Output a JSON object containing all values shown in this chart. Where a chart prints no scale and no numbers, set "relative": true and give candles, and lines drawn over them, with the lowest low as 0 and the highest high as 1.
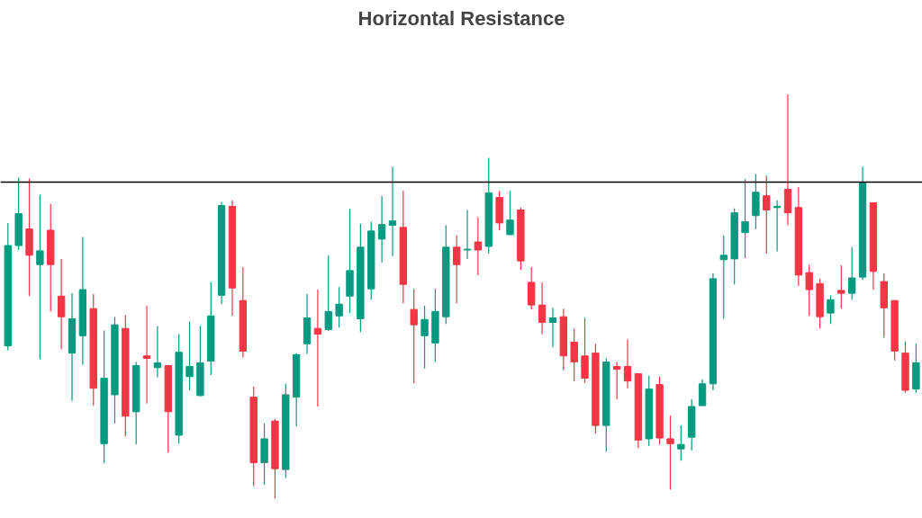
{
  "chart_data": {
    "type": "candlestick",
    "title": "Horizontal Resistance",
    "relative": true,
    "categories": [
      null,
      null,
      null,
      null,
      null,
      null,
      null,
      null,
      null,
      null,
      null,
      null,
      null,
      null,
      null,
      null,
      null,
      null,
      null,
      null,
      null,
      null,
      null,
      null,
      null,
      null,
      null,
      null,
      null,
      null,
      null,
      null,
      null,
      null,
      null,
      null,
      null,
      null,
      null,
      null,
      null,
      null,
      null,
      null,
      null,
      null,
      null,
      null,
      null,
      null,
      null,
      null,
      null,
      null,
      null,
      null,
      null,
      null,
      null,
      null,
      null,
      null,
      null,
      null,
      null,
      null,
      null,
      null,
      null,
      null,
      null,
      null,
      null,
      null,
      null,
      null,
      null,
      null,
      null,
      null,
      null,
      null,
      null,
      null,
      null,
      null
    ],
    "ohlc": [
      [
        0.378,
        0.682,
        0.367,
        0.626
      ],
      [
        0.626,
        0.794,
        0.615,
        0.705
      ],
      [
        0.667,
        0.792,
        0.501,
        0.602
      ],
      [
        0.579,
        0.752,
        0.345,
        0.613
      ],
      [
        0.664,
        0.729,
        0.463,
        0.579
      ],
      [
        0.501,
        0.593,
        0.369,
        0.45
      ],
      [
        0.36,
        0.508,
        0.242,
        0.445
      ],
      [
        0.403,
        0.647,
        0.331,
        0.517
      ],
      [
        0.47,
        0.506,
        0.23,
        0.273
      ],
      [
        0.136,
        0.416,
        0.087,
        0.298
      ],
      [
        0.257,
        0.45,
        0.186,
        0.43
      ],
      [
        0.421,
        0.454,
        0.154,
        0.204
      ],
      [
        0.215,
        0.338,
        0.134,
        0.329
      ],
      [
        0.353,
        0.477,
        0.235,
        0.347
      ],
      [
        0.324,
        0.427,
        0.3,
        0.336
      ],
      [
        0.329,
        0.329,
        0.114,
        0.215
      ],
      [
        0.157,
        0.407,
        0.136,
        0.362
      ],
      [
        0.302,
        0.438,
        0.268,
        0.327
      ],
      [
        0.255,
        0.427,
        0.253,
        0.336
      ],
      [
        0.34,
        0.535,
        0.306,
        0.452
      ],
      [
        0.503,
        0.734,
        0.481,
        0.725
      ],
      [
        0.723,
        0.738,
        0.452,
        0.521
      ],
      [
        0.49,
        0.573,
        0.349,
        0.365
      ],
      [
        0.251,
        0.277,
        0.031,
        0.089
      ],
      [
        0.089,
        0.186,
        0.034,
        0.148
      ],
      [
        0.192,
        0.197,
        0.0,
        0.074
      ],
      [
        0.072,
        0.284,
        0.051,
        0.257
      ],
      [
        0.251,
        0.36,
        0.179,
        0.356
      ],
      [
        0.383,
        0.506,
        0.358,
        0.447
      ],
      [
        0.421,
        0.517,
        0.228,
        0.407
      ],
      [
        0.418,
        0.602,
        0.414,
        0.463
      ],
      [
        0.452,
        0.523,
        0.423,
        0.481
      ],
      [
        0.501,
        0.716,
        0.459,
        0.564
      ],
      [
        0.445,
        0.68,
        0.412,
        0.622
      ],
      [
        0.519,
        0.685,
        0.492,
        0.662
      ],
      [
        0.642,
        0.749,
        0.584,
        0.678
      ],
      [
        0.676,
        0.821,
        0.6,
        0.687
      ],
      [
        0.671,
        0.761,
        0.483,
        0.53
      ],
      [
        0.468,
        0.519,
        0.286,
        0.43
      ],
      [
        0.403,
        0.477,
        0.322,
        0.443
      ],
      [
        0.385,
        0.519,
        0.338,
        0.463
      ],
      [
        0.45,
        0.676,
        0.432,
        0.622
      ],
      [
        0.622,
        0.651,
        0.483,
        0.579
      ],
      [
        0.615,
        0.714,
        0.593,
        0.617
      ],
      [
        0.635,
        0.696,
        0.553,
        0.615
      ],
      [
        0.624,
        0.843,
        0.606,
        0.756
      ],
      [
        0.745,
        0.761,
        0.664,
        0.682
      ],
      [
        0.653,
        0.761,
        0.653,
        0.689
      ],
      [
        0.714,
        0.72,
        0.566,
        0.588
      ],
      [
        0.535,
        0.573,
        0.468,
        0.479
      ],
      [
        0.479,
        0.535,
        0.407,
        0.436
      ],
      [
        0.436,
        0.472,
        0.374,
        0.447
      ],
      [
        0.45,
        0.47,
        0.318,
        0.353
      ],
      [
        0.387,
        0.421,
        0.291,
        0.338
      ],
      [
        0.353,
        0.447,
        0.286,
        0.298
      ],
      [
        0.36,
        0.383,
        0.161,
        0.181
      ],
      [
        0.181,
        0.347,
        0.116,
        0.338
      ],
      [
        0.327,
        0.338,
        0.246,
        0.32
      ],
      [
        0.327,
        0.394,
        0.273,
        0.291
      ],
      [
        0.309,
        0.309,
        0.125,
        0.145
      ],
      [
        0.148,
        0.304,
        0.13,
        0.271
      ],
      [
        0.282,
        0.302,
        0.134,
        0.15
      ],
      [
        0.148,
        0.206,
        0.022,
        0.136
      ],
      [
        0.123,
        0.181,
        0.094,
        0.134
      ],
      [
        0.152,
        0.246,
        0.119,
        0.228
      ],
      [
        0.23,
        0.295,
        0.23,
        0.284
      ],
      [
        0.284,
        0.557,
        0.268,
        0.544
      ],
      [
        0.591,
        0.651,
        0.445,
        0.602
      ],
      [
        0.593,
        0.718,
        0.53,
        0.707
      ],
      [
        0.658,
        0.79,
        0.595,
        0.685
      ],
      [
        0.7,
        0.803,
        0.667,
        0.758
      ],
      [
        0.749,
        0.799,
        0.606,
        0.714
      ],
      [
        0.72,
        0.738,
        0.611,
        0.723
      ],
      [
        0.765,
        1.0,
        0.676,
        0.707
      ],
      [
        0.72,
        0.77,
        0.526,
        0.553
      ],
      [
        0.559,
        0.579,
        0.452,
        0.517
      ],
      [
        0.532,
        0.544,
        0.421,
        0.45
      ],
      [
        0.459,
        0.503,
        0.432,
        0.492
      ],
      [
        0.515,
        0.577,
        0.47,
        0.508
      ],
      [
        0.508,
        0.622,
        0.492,
        0.546
      ],
      [
        0.548,
        0.821,
        0.541,
        0.781
      ],
      [
        0.732,
        0.732,
        0.517,
        0.562
      ],
      [
        0.537,
        0.557,
        0.398,
        0.472
      ],
      [
        0.49,
        0.49,
        0.342,
        0.365
      ],
      [
        0.36,
        0.389,
        0.262,
        0.268
      ],
      [
        0.271,
        0.383,
        0.262,
        0.336
      ]
    ],
    "colors": [
      "#089981",
      "#089981",
      "#f23645",
      "#089981",
      "#f23645",
      "#f23645",
      "#089981",
      "#089981",
      "#f23645",
      "#089981",
      "#089981",
      "#f23645",
      "#089981",
      "#f23645",
      "#089981",
      "#f23645",
      "#089981",
      "#089981",
      "#089981",
      "#089981",
      "#089981",
      "#f23645",
      "#f23645",
      "#f23645",
      "#089981",
      "#f23645",
      "#089981",
      "#089981",
      "#089981",
      "#f23645",
      "#089981",
      "#089981",
      "#089981",
      "#089981",
      "#089981",
      "#089981",
      "#089981",
      "#f23645",
      "#f23645",
      "#089981",
      "#089981",
      "#089981",
      "#f23645",
      "#089981",
      "#f23645",
      "#089981",
      "#f23645",
      "#089981",
      "#f23645",
      "#f23645",
      "#f23645",
      "#089981",
      "#f23645",
      "#f23645",
      "#f23645",
      "#f23645",
      "#089981",
      "#f23645",
      "#f23645",
      "#f23645",
      "#089981",
      "#f23645",
      "#f23645",
      "#089981",
      "#089981",
      "#089981",
      "#089981",
      "#089981",
      "#089981",
      "#089981",
      "#089981",
      "#f23645",
      "#089981",
      "#f23645",
      "#f23645",
      "#f23645",
      "#f23645",
      "#089981",
      "#f23645",
      "#089981",
      "#089981",
      "#f23645",
      "#f23645",
      "#f23645",
      "#f23645",
      "#089981"
    ],
    "ref_lines": [
      {
        "axis": "y",
        "value": 0.783,
        "color": "#000000"
      }
    ]
  }
}
